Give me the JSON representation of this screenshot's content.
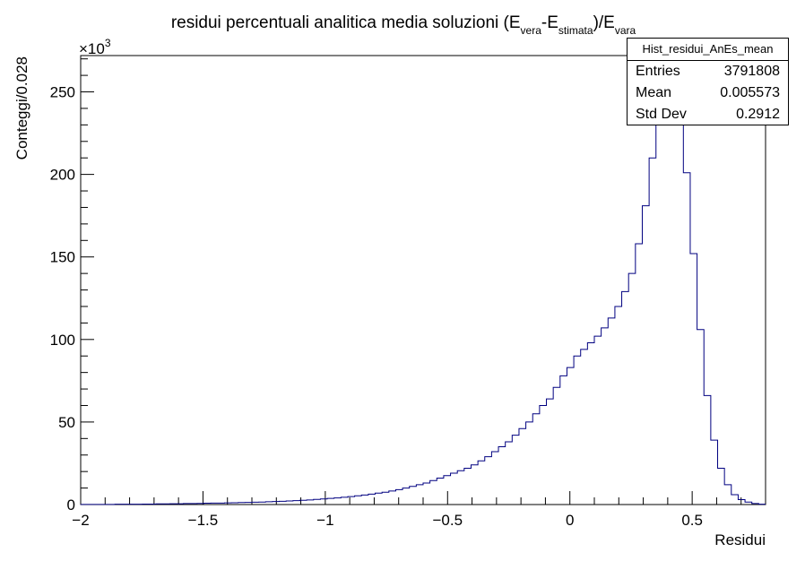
{
  "chart_data": {
    "type": "histogram",
    "title_parts": {
      "main": "residui percentuali analitica media soluzioni (E",
      "sub1": "vera",
      "mid": "-E",
      "sub2": "stimata",
      "end": ")/E",
      "sub3": "vara"
    },
    "xlabel": "Residui",
    "ylabel": "Conteggi/0.028",
    "y_multiplier_base": "×10",
    "y_multiplier_exp": "3",
    "xlim": [
      -2,
      0.8
    ],
    "ylim": [
      0,
      272
    ],
    "bin_width": 0.028,
    "x_ticks": [
      -2,
      -1.5,
      -1,
      -0.5,
      0,
      0.5
    ],
    "x_tick_labels": [
      "−2",
      "−1.5",
      "−1",
      "−0.5",
      "0",
      "0.5"
    ],
    "y_ticks": [
      0,
      50,
      100,
      150,
      200,
      250
    ],
    "y_tick_labels": [
      "0",
      "50",
      "100",
      "150",
      "200",
      "250"
    ],
    "line_color": "#000080",
    "values": [
      0.1,
      0.1,
      0.1,
      0.1,
      0.1,
      0.2,
      0.2,
      0.2,
      0.2,
      0.3,
      0.3,
      0.4,
      0.4,
      0.5,
      0.5,
      0.6,
      0.6,
      0.7,
      0.8,
      0.9,
      0.9,
      1.0,
      1.1,
      1.2,
      1.3,
      1.4,
      1.5,
      1.7,
      1.8,
      2.0,
      2.2,
      2.4,
      2.6,
      2.8,
      3.1,
      3.4,
      3.7,
      4.0,
      4.4,
      4.8,
      5.3,
      5.8,
      6.3,
      6.9,
      7.5,
      8.2,
      9.0,
      10,
      11,
      12,
      13,
      14.5,
      16,
      17.5,
      19,
      20.5,
      22,
      24,
      26.5,
      29,
      32,
      35,
      38,
      42,
      46,
      50,
      55,
      60,
      64,
      71,
      78,
      83,
      90,
      94,
      98,
      102,
      107,
      113,
      120,
      129,
      140,
      158,
      181,
      210,
      238,
      258,
      258,
      238,
      201,
      152,
      106,
      66,
      39,
      22,
      12,
      6,
      3,
      1.5,
      0.6,
      0.2
    ]
  },
  "stats": {
    "title": "Hist_residui_AnEs_mean",
    "rows": [
      {
        "label": "Entries",
        "value": "3791808"
      },
      {
        "label": "Mean",
        "value": "0.005573"
      },
      {
        "label": "Std Dev",
        "value": "0.2912"
      }
    ]
  }
}
